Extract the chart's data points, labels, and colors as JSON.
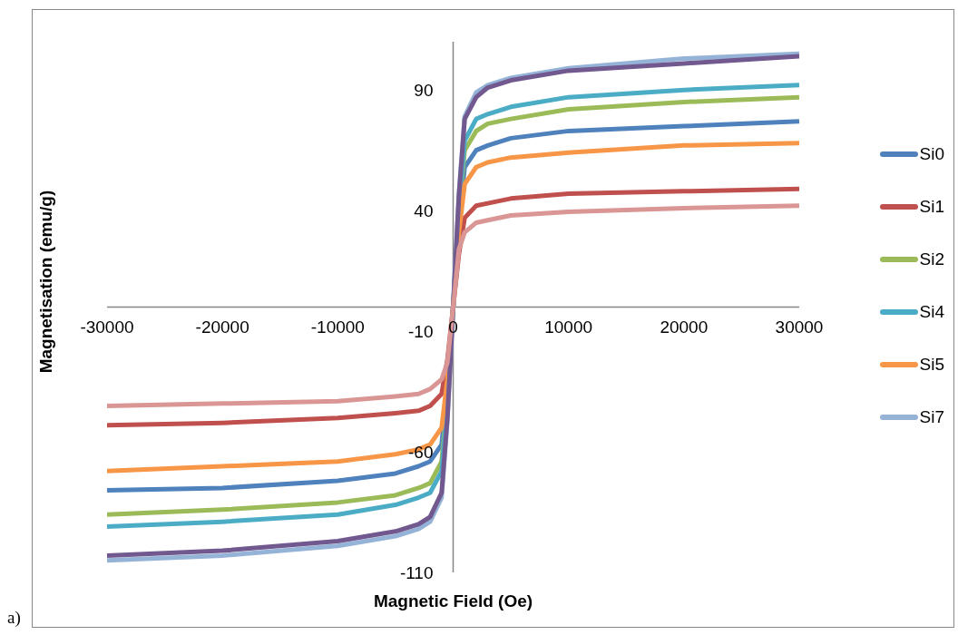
{
  "chart_data": {
    "type": "line",
    "xlabel": "Magnetic Field (Oe)",
    "ylabel": "Magnetisation (emu/g)",
    "annotations": [
      "a)"
    ],
    "x": [
      -30000,
      -20000,
      -10000,
      -5000,
      -3000,
      -2000,
      -1000,
      -500,
      0,
      500,
      1000,
      2000,
      3000,
      5000,
      10000,
      20000,
      30000
    ],
    "xlim": [
      -30000,
      30000
    ],
    "xticks": [
      -30000,
      -20000,
      -10000,
      0,
      10000,
      20000,
      30000
    ],
    "ylim": [
      -110,
      110
    ],
    "yticks": [
      -110,
      -60,
      -10,
      40,
      90
    ],
    "legend": "right",
    "series": [
      {
        "name": "Si0",
        "color": "#4f81bd",
        "values": [
          -76,
          -75,
          -72,
          -69,
          -66,
          -64,
          -57,
          -34,
          0,
          35,
          58,
          65,
          67,
          70,
          73,
          75,
          77
        ]
      },
      {
        "name": "Si1",
        "color": "#c0504d",
        "values": [
          -49,
          -48,
          -46,
          -44,
          -43,
          -41,
          -36,
          -22,
          0,
          22,
          37,
          42,
          43,
          45,
          47,
          48,
          49
        ]
      },
      {
        "name": "Si2",
        "color": "#9bbb59",
        "values": [
          -86,
          -84,
          -81,
          -78,
          -75,
          -73,
          -64,
          -39,
          0,
          39,
          65,
          73,
          76,
          78,
          82,
          85,
          87
        ]
      },
      {
        "name": "Si4",
        "color": "#4bacc6",
        "values": [
          -91,
          -89,
          -86,
          -82,
          -79,
          -77,
          -68,
          -41,
          0,
          41,
          69,
          78,
          80,
          83,
          87,
          90,
          92
        ]
      },
      {
        "name": "Si5",
        "color": "#f79646",
        "values": [
          -68,
          -66,
          -64,
          -61,
          -59,
          -57,
          -50,
          -30,
          0,
          31,
          51,
          58,
          60,
          62,
          64,
          67,
          68
        ]
      },
      {
        "name": "Si7",
        "color": "#95b3d7",
        "values": [
          -105,
          -103,
          -99,
          -95,
          -92,
          -89,
          -79,
          -47,
          0,
          47,
          79,
          89,
          92,
          95,
          99,
          103,
          105
        ]
      },
      {
        "color": "#71588f",
        "values": [
          -103,
          -101,
          -97,
          -93,
          -90,
          -87,
          -77,
          -46,
          0,
          46,
          78,
          87,
          91,
          94,
          98,
          101,
          104
        ]
      },
      {
        "color": "#d99694",
        "values": [
          -41,
          -40,
          -39,
          -37,
          -36,
          -34,
          -30,
          -23,
          0,
          24,
          31,
          35,
          36,
          38,
          39.5,
          41,
          42
        ]
      }
    ]
  }
}
